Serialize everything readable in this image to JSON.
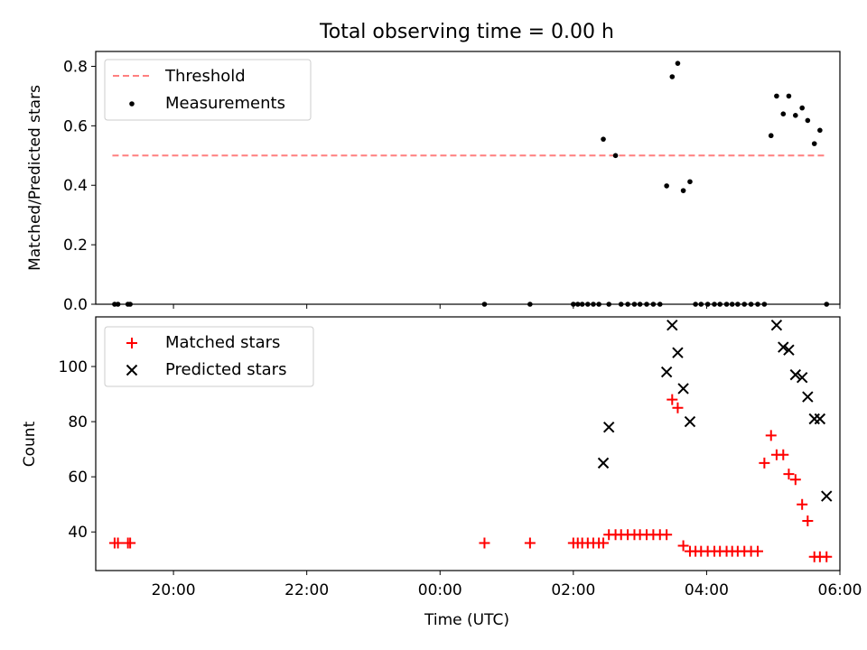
{
  "chart_data": [
    {
      "type": "scatter",
      "title": "Total observing time = 0.00 h",
      "ylabel": "Matched/Predicted stars",
      "xlabel": "",
      "xlim": [
        "18:50",
        "06:00"
      ],
      "ylim": [
        0,
        0.85
      ],
      "yticks": [
        0.0,
        0.2,
        0.4,
        0.6,
        0.8
      ],
      "ytick_labels": [
        "0.0",
        "0.2",
        "0.4",
        "0.6",
        "0.8"
      ],
      "legend_position": "top-left",
      "grid": false,
      "threshold": {
        "name": "Threshold",
        "value": 0.5,
        "x_start": "19:05",
        "x_end": "05:48",
        "color": "#ff7f7f",
        "style": "dashed"
      },
      "series": [
        {
          "name": "Measurements",
          "marker": "dot",
          "color": "#000000",
          "x": [
            "19:07",
            "19:10",
            "19:19",
            "19:21",
            "00:40",
            "01:21",
            "02:00",
            "02:04",
            "02:08",
            "02:13",
            "02:18",
            "02:23",
            "02:27",
            "02:32",
            "02:38",
            "02:43",
            "02:49",
            "02:55",
            "03:00",
            "03:06",
            "03:12",
            "03:18",
            "03:24",
            "03:29",
            "03:34",
            "03:39",
            "03:45",
            "03:50",
            "03:55",
            "04:01",
            "04:07",
            "04:12",
            "04:18",
            "04:23",
            "04:28",
            "04:34",
            "04:40",
            "04:46",
            "04:52",
            "04:58",
            "05:03",
            "05:09",
            "05:14",
            "05:20",
            "05:26",
            "05:31",
            "05:37",
            "05:42",
            "05:48"
          ],
          "y": [
            0,
            0,
            0,
            0,
            0,
            0,
            0,
            0,
            0,
            0,
            0,
            0,
            0.555,
            0,
            0.5,
            0,
            0,
            0,
            0,
            0,
            0,
            0,
            0.398,
            0.765,
            0.81,
            0.382,
            0.412,
            0,
            0,
            0,
            0,
            0,
            0,
            0,
            0,
            0,
            0,
            0,
            0,
            0.567,
            0.7,
            0.64,
            0.7,
            0.635,
            0.66,
            0.618,
            0.54,
            0.585,
            0
          ]
        }
      ]
    },
    {
      "type": "scatter",
      "title": "",
      "xlabel": "Time (UTC)",
      "ylabel": "Count",
      "xlim": [
        "18:50",
        "06:00"
      ],
      "xticks": [
        "20:00",
        "22:00",
        "00:00",
        "02:00",
        "04:00",
        "06:00"
      ],
      "ylim": [
        26,
        118
      ],
      "yticks": [
        40,
        60,
        80,
        100
      ],
      "ytick_labels": [
        "40",
        "60",
        "80",
        "100"
      ],
      "legend_position": "top-left",
      "grid": false,
      "series": [
        {
          "name": "Matched stars",
          "marker": "plus",
          "color": "#ff0000",
          "x": [
            "19:07",
            "19:10",
            "19:19",
            "19:21",
            "00:40",
            "01:21",
            "02:00",
            "02:04",
            "02:08",
            "02:13",
            "02:18",
            "02:23",
            "02:27",
            "02:32",
            "02:38",
            "02:43",
            "02:49",
            "02:55",
            "03:00",
            "03:06",
            "03:12",
            "03:18",
            "03:24",
            "03:29",
            "03:34",
            "03:39",
            "03:45",
            "03:50",
            "03:55",
            "04:01",
            "04:07",
            "04:12",
            "04:18",
            "04:23",
            "04:28",
            "04:34",
            "04:40",
            "04:46",
            "04:52",
            "04:58",
            "05:03",
            "05:09",
            "05:14",
            "05:20",
            "05:26",
            "05:31",
            "05:37",
            "05:42",
            "05:48"
          ],
          "y": [
            36,
            36,
            36,
            36,
            36,
            36,
            36,
            36,
            36,
            36,
            36,
            36,
            36,
            39,
            39,
            39,
            39,
            39,
            39,
            39,
            39,
            39,
            39,
            88,
            85,
            35,
            33,
            33,
            33,
            33,
            33,
            33,
            33,
            33,
            33,
            33,
            33,
            33,
            65,
            75,
            68,
            68,
            61,
            59,
            50,
            44,
            31,
            31,
            31
          ]
        },
        {
          "name": "Predicted stars",
          "marker": "x",
          "color": "#000000",
          "x": [
            "02:27",
            "02:32",
            "03:24",
            "03:29",
            "03:34",
            "03:39",
            "03:45",
            "05:03",
            "05:09",
            "05:14",
            "05:20",
            "05:26",
            "05:31",
            "05:37",
            "05:42",
            "05:48"
          ],
          "y": [
            65,
            78,
            98,
            115,
            105,
            92,
            80,
            115,
            107,
            106,
            97,
            96,
            89,
            81,
            81,
            53
          ]
        }
      ]
    }
  ]
}
